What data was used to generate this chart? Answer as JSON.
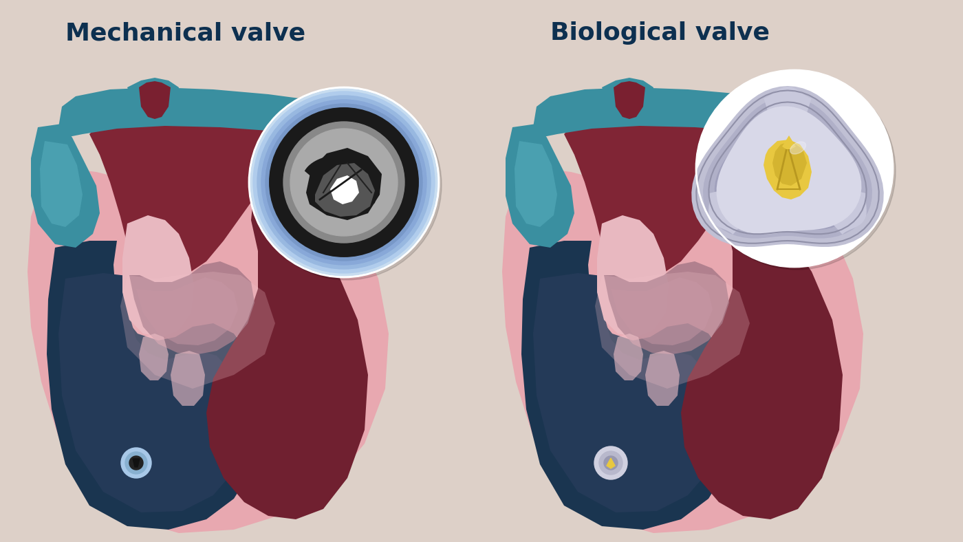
{
  "bg_color": "#ddd0c8",
  "title_left": "Mechanical valve",
  "title_right": "Biological valve",
  "title_color": "#0d3050",
  "title_fontsize": 26,
  "colors": {
    "teal": "#3a8fa0",
    "teal_dark": "#2a7080",
    "teal_light": "#5ab0c0",
    "teal_inner": "#4aa0b0",
    "red_dark": "#7a2030",
    "red_aorta": "#902030",
    "red_atrium": "#802535",
    "red_ventricle": "#702030",
    "pink_outer": "#e8a8b0",
    "pink_light": "#f0c0c8",
    "pink_membrane": "#e8b8c0",
    "navy_lv": "#1a3550",
    "navy_lv2": "#243a58",
    "mauve": "#9a7080",
    "mauve_light": "#b88898",
    "white": "#ffffff",
    "blue_ring_outer": "#a8c8e8",
    "blue_ring_mid": "#88b0d0",
    "blue_ring_inner": "#6898b8",
    "mech_black": "#1a1a1a",
    "mech_dark": "#2a2a2a",
    "mech_gray": "#404040",
    "mech_white": "#d8d8d8",
    "bio_silver_light": "#d0d0e0",
    "bio_silver": "#b8b8cc",
    "bio_silver_dark": "#9898b0",
    "bio_stent": "#c0c0d4",
    "yellow_bright": "#e8c840",
    "yellow_mid": "#d4b430",
    "yellow_dark": "#b89820",
    "cream": "#f0e8d8"
  }
}
